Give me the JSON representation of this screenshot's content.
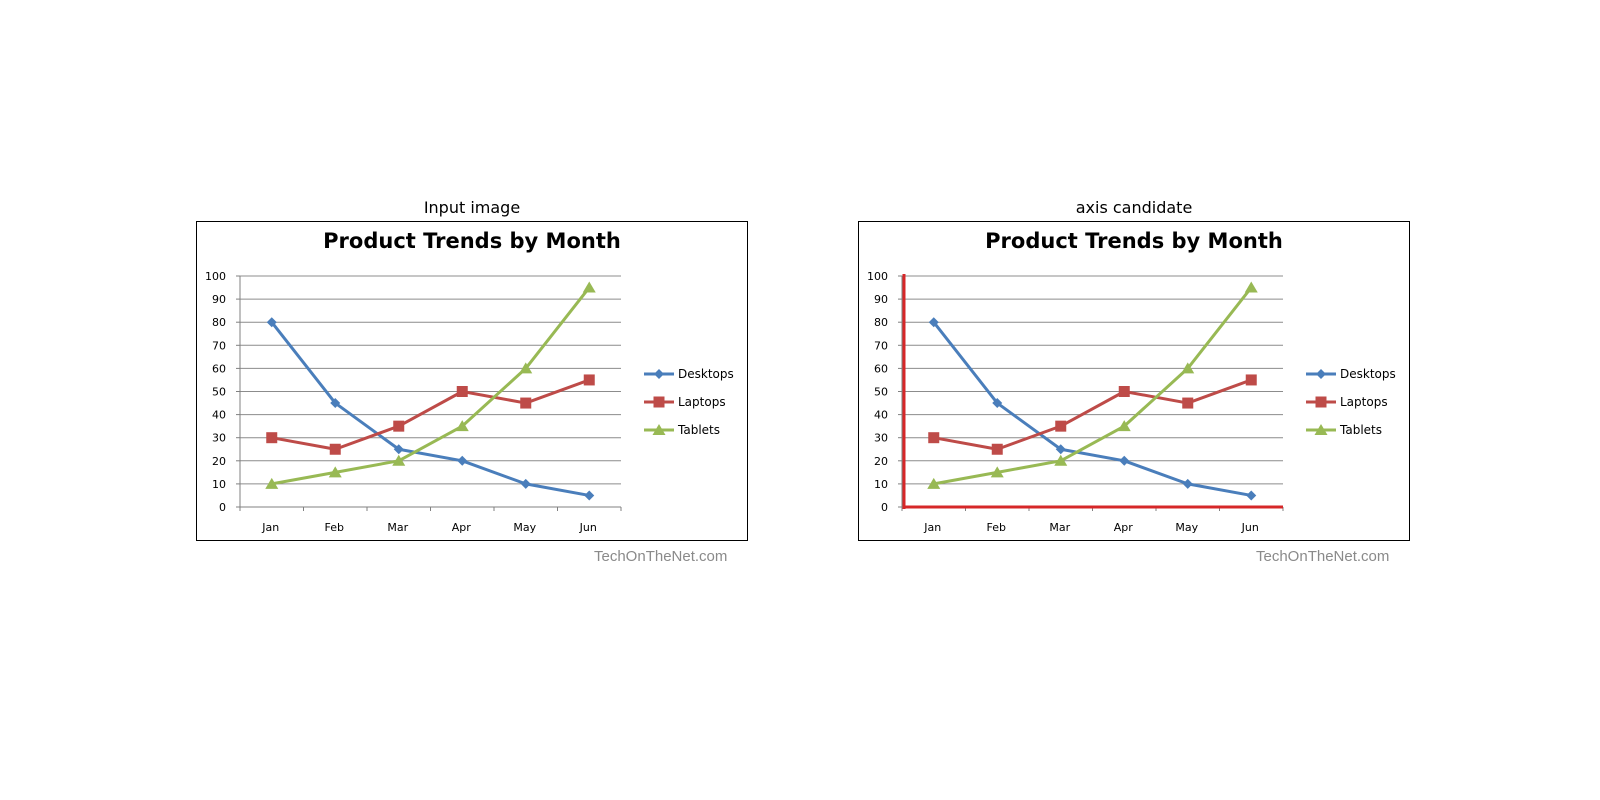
{
  "panels": [
    {
      "heading": "Input image",
      "highlight_axes": false
    },
    {
      "heading": "axis candidate",
      "highlight_axes": true
    }
  ],
  "watermark": "TechOnTheNet.com",
  "colors": {
    "axis_highlight": "#d62728",
    "grid": "#8c8c8c",
    "frame": "#000000"
  },
  "chart_data": {
    "type": "line",
    "title": "Product Trends by Month",
    "categories": [
      "Jan",
      "Feb",
      "Mar",
      "Apr",
      "May",
      "Jun"
    ],
    "ylim": [
      0,
      100
    ],
    "yticks": [
      "0",
      "10",
      "20",
      "30",
      "40",
      "50",
      "60",
      "70",
      "80",
      "90",
      "100"
    ],
    "grid": true,
    "legend": "right",
    "series": [
      {
        "name": "Desktops",
        "values": [
          80,
          45,
          25,
          20,
          10,
          5
        ],
        "color": "#4a7ebb",
        "marker": "diamond"
      },
      {
        "name": "Laptops",
        "values": [
          30,
          25,
          35,
          50,
          45,
          55
        ],
        "color": "#be4b48",
        "marker": "square"
      },
      {
        "name": "Tablets",
        "values": [
          10,
          15,
          20,
          35,
          60,
          95
        ],
        "color": "#98b954",
        "marker": "triangle"
      }
    ]
  }
}
